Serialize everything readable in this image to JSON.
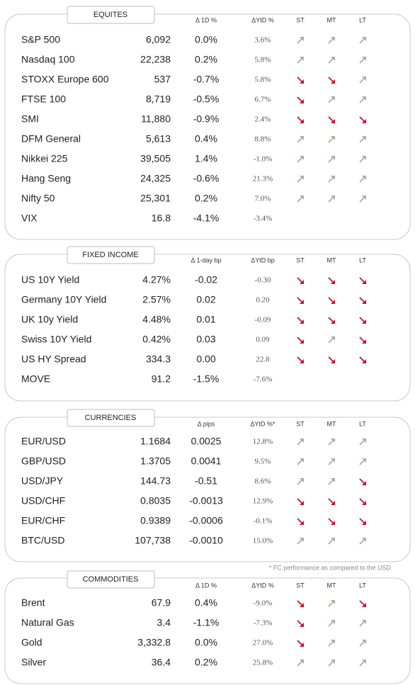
{
  "sections": [
    {
      "title": "EQUITES",
      "headers": [
        "Δ 1D %",
        "ΔYtD %",
        "ST",
        "MT",
        "LT"
      ],
      "rows": [
        [
          "S&P 500",
          "6,092",
          "0.0%",
          "3.6%"
        ],
        [
          "Nasdaq 100",
          "22,238",
          "0.2%",
          "5.8%"
        ],
        [
          "STOXX Europe 600",
          "537",
          "-0.7%",
          "5.8%"
        ],
        [
          "FTSE 100",
          "8,719",
          "-0.5%",
          "6.7%"
        ],
        [
          "SMI",
          "11,880",
          "-0.9%",
          "2.4%"
        ],
        [
          "DFM General",
          "5,613",
          "0.4%",
          "8.8%"
        ],
        [
          "Nikkei 225",
          "39,505",
          "1.4%",
          "-1.0%"
        ],
        [
          "Hang Seng",
          "24,325",
          "-0.6%",
          "21.3%"
        ],
        [
          "Nifty  50",
          "25,301",
          "0.2%",
          "7.0%"
        ],
        [
          "VIX",
          "16.8",
          "-4.1%",
          "-3.4%"
        ]
      ],
      "tones": [
        "red",
        "green",
        "red",
        "red",
        "red",
        "green",
        "green",
        "red",
        "green",
        "red"
      ],
      "trends": [
        [
          "up",
          "up",
          "up"
        ],
        [
          "up",
          "up",
          "up"
        ],
        [
          "down",
          "down",
          "up"
        ],
        [
          "down",
          "up",
          "up"
        ],
        [
          "down",
          "down",
          "down"
        ],
        [
          "up",
          "up",
          "up"
        ],
        [
          "up",
          "up",
          "up"
        ],
        [
          "up",
          "up",
          "up"
        ],
        [
          "up",
          "up",
          "up"
        ],
        []
      ]
    },
    {
      "title": "FIXED INCOME",
      "headers": [
        "Δ 1-day bp",
        "ΔYtD bp",
        "ST",
        "MT",
        "LT"
      ],
      "rows": [
        [
          "US 10Y Yield",
          "4.27%",
          "-0.02",
          "-0.30"
        ],
        [
          "Germany 10Y Yield",
          "2.57%",
          "0.02",
          "0.20"
        ],
        [
          "UK 10y Yield",
          "4.48%",
          "0.01",
          "-0.09"
        ],
        [
          "Swiss 10Y Yield",
          "0.42%",
          "0.03",
          "0.09"
        ],
        [
          "US HY Spread",
          "334.3",
          "0.00",
          "22.8"
        ],
        [
          "MOVE",
          "91.2",
          "-1.5%",
          "-7.6%"
        ]
      ],
      "tones": [
        "red",
        "gray",
        "gray",
        "gray",
        "black",
        "red"
      ],
      "trends": [
        [
          "down",
          "down",
          "down"
        ],
        [
          "down",
          "down",
          "down"
        ],
        [
          "down",
          "down",
          "down"
        ],
        [
          "down",
          "up",
          "down"
        ],
        [
          "down",
          "down",
          "down"
        ],
        []
      ]
    },
    {
      "title": "CURRENCIES",
      "headers": [
        "Δ pips",
        "ΔYtD %*",
        "ST",
        "MT",
        "LT"
      ],
      "rows": [
        [
          "EUR/USD",
          "1.1684",
          "0.0025",
          "12.8%"
        ],
        [
          "GBP/USD",
          "1.3705",
          "0.0041",
          "9.5%"
        ],
        [
          "USD/JPY",
          "144.73",
          "-0.51",
          "8.6%"
        ],
        [
          "USD/CHF",
          "0.8035",
          "-0.0013",
          "12.9%"
        ],
        [
          "EUR/CHF",
          "0.9389",
          "-0.0006",
          "-0.1%"
        ],
        [
          "BTC/USD",
          "107,738",
          "-0.0010",
          "15.0%"
        ]
      ],
      "tones": [
        "gray",
        "gray",
        "red",
        "red",
        "red",
        "red"
      ],
      "trends": [
        [
          "up",
          "up",
          "up"
        ],
        [
          "up",
          "up",
          "up"
        ],
        [
          "up",
          "up",
          "down"
        ],
        [
          "down",
          "down",
          "down"
        ],
        [
          "down",
          "down",
          "down"
        ],
        [
          "up",
          "up",
          "up"
        ]
      ]
    },
    {
      "title": "COMMODITIES",
      "headers": [
        "Δ 1D %",
        "ΔYtD %",
        "ST",
        "MT",
        "LT"
      ],
      "rows": [
        [
          "Brent",
          "67.9",
          "0.4%",
          "-9.0%"
        ],
        [
          "Natural Gas",
          "3.4",
          "-1.1%",
          "-7.3%"
        ],
        [
          "Gold",
          "3,332.8",
          "0.0%",
          "27.0%"
        ],
        [
          "Silver",
          "36.4",
          "0.2%",
          "25.8%"
        ]
      ],
      "tones": [
        "gray",
        "red",
        "gray",
        "gray"
      ],
      "trends": [
        [
          "down",
          "up",
          "down"
        ],
        [
          "down",
          "up",
          "up"
        ],
        [
          "down",
          "up",
          "up"
        ],
        [
          "up",
          "up",
          "up"
        ]
      ]
    }
  ],
  "footnote": "* FC performance as compared to the USD"
}
